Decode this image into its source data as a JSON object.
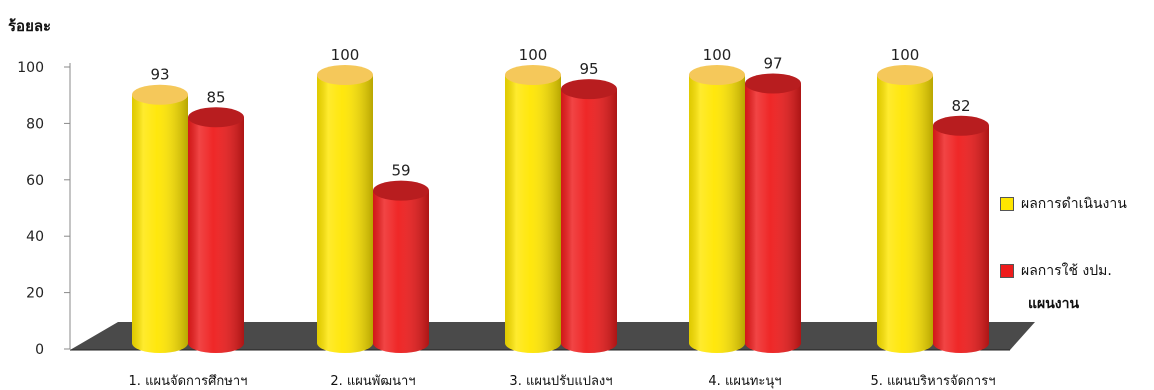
{
  "chart_data": {
    "type": "bar",
    "ylabel": "ร้อยละ",
    "ylim": [
      0,
      100
    ],
    "yticks": [
      0,
      20,
      40,
      60,
      80,
      100
    ],
    "categories": [
      "1. แผนจัดการศึกษาฯ",
      "2. แผนพัฒนาฯ",
      "3. แผนปรับแปลงฯ",
      "4. แผนทะนุฯ",
      "5. แผนบริหารจัดการฯ"
    ],
    "series": [
      {
        "name": "ผลการดำเนินงาน",
        "values": [
          93,
          100,
          100,
          100,
          100
        ],
        "color": "#ffe600",
        "top_color": "#f5c85a"
      },
      {
        "name": "ผลการใช้ งปม.",
        "values": [
          85,
          59,
          95,
          97,
          82
        ],
        "color": "#ee1c1c",
        "top_color": "#b81d1f"
      }
    ],
    "legend_note": "แผนงาน",
    "legend_position": "right",
    "floor_color": "#4a4a4a"
  }
}
